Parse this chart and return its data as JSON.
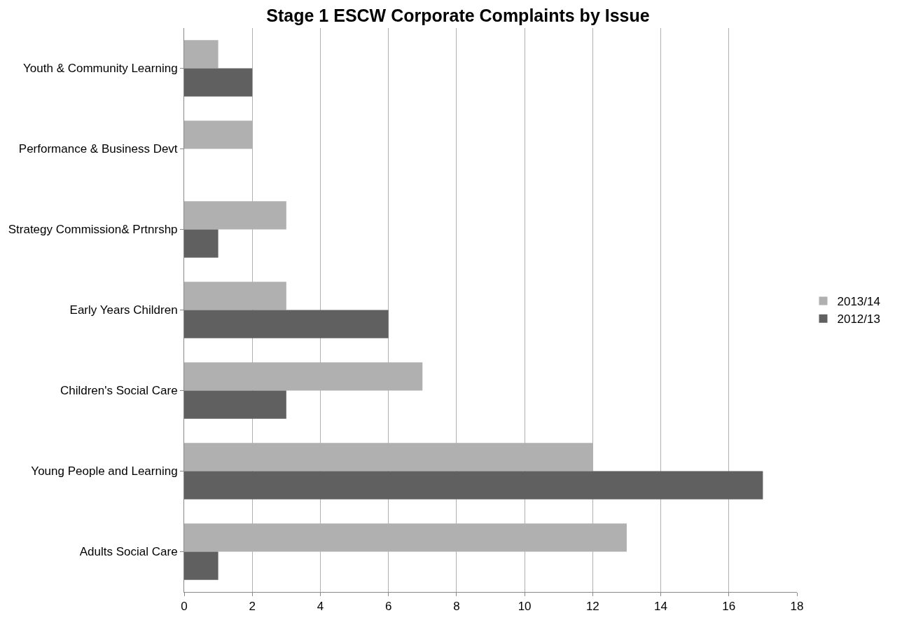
{
  "chart_data": {
    "type": "bar",
    "orientation": "horizontal",
    "title": "Stage 1 ESCW Corporate Complaints by Issue",
    "categories": [
      "Youth & Community Learning",
      "Performance & Business Devt",
      "Strategy Commission& Prtnrshp",
      "Early Years Children",
      "Children's Social Care",
      "Young People and Learning",
      "Adults Social Care"
    ],
    "series": [
      {
        "name": "2013/14",
        "color": "#b0b0b0",
        "values": [
          1,
          2,
          3,
          3,
          7,
          12,
          13
        ]
      },
      {
        "name": "2012/13",
        "color": "#606060",
        "values": [
          2,
          0,
          1,
          6,
          3,
          17,
          1
        ]
      }
    ],
    "xlim": [
      0,
      18
    ],
    "xticks": [
      0,
      2,
      4,
      6,
      8,
      10,
      12,
      14,
      16,
      18
    ],
    "grid": "x",
    "legend": "right"
  }
}
